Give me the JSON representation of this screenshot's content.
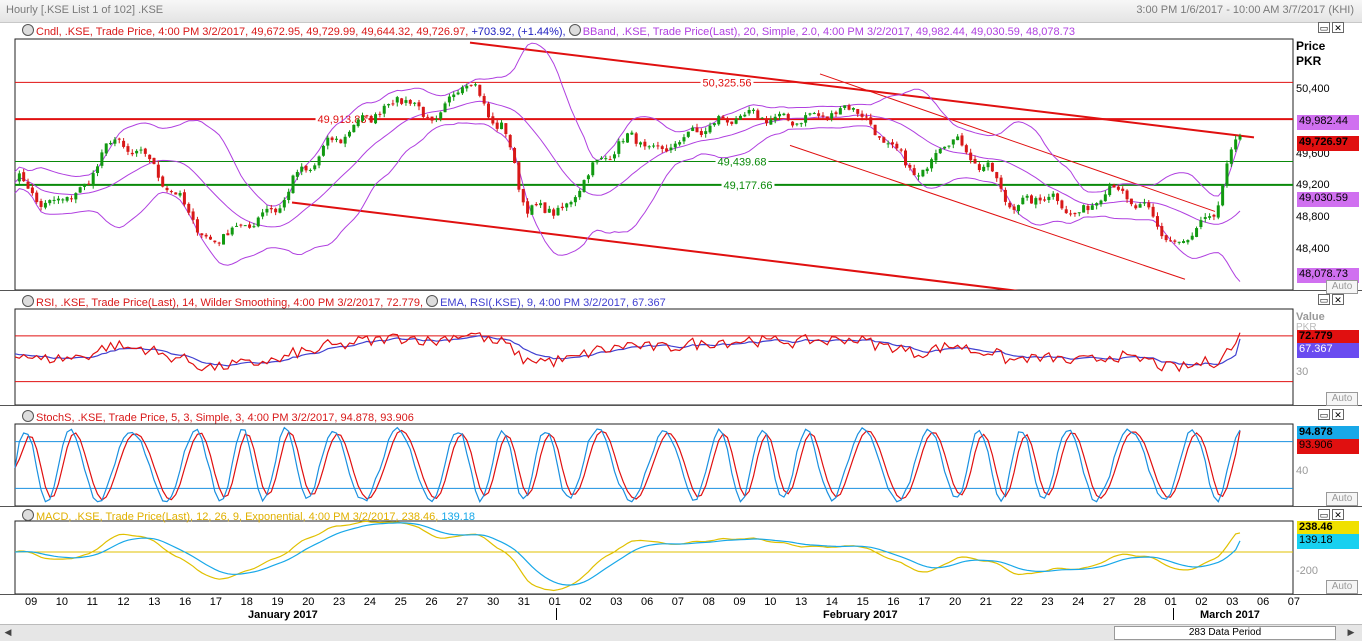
{
  "window": {
    "title": "Hourly [.KSE List 1 of 102] .KSE",
    "range": "3:00 PM 1/6/2017 - 10:00 AM 3/7/2017 (KHI)"
  },
  "colors": {
    "up": "#119911",
    "down": "#d81818",
    "bband": "#b040e0",
    "green_line": "#0a8a0a",
    "red_line": "#e01010",
    "stoch_k": "#1a90e0",
    "stoch_d": "#e01010",
    "macd": "#18a8e8",
    "signal": "#e0c000",
    "rsi": "#e01010",
    "ema": "#4040d0"
  },
  "price_panel": {
    "legend_cndl": "Cndl, .KSE, Trade Price, 4:00 PM 3/2/2017, 49,672.95, 49,729.99, 49,644.32, 49,726.97,",
    "legend_change": "+703.92, (+1.44%),",
    "legend_bband": "BBand, .KSE, Trade Price(Last), 20, Simple, 2.0, 4:00 PM 3/2/2017, 49,982.44, 49,030.59, 48,078.73",
    "axis_title": "Price",
    "axis_unit": "PKR",
    "ticks": [
      "50,400",
      "49,600",
      "49,200",
      "48,800",
      "48,400"
    ],
    "tag_upper": "49,982.44",
    "tag_last": "49,726.97",
    "tag_mid": "49,030.59",
    "tag_lower": "48,078.73",
    "level_1": "50,325.56",
    "level_2": "49,913.83",
    "level_3": "49,439.68",
    "level_4": "49,177.66",
    "auto": "Auto"
  },
  "rsi_panel": {
    "legend_rsi": "RSI, .KSE, Trade Price(Last), 14, Wilder Smoothing, 4:00 PM 3/2/2017, 72.779,",
    "legend_ema": "EMA, RSI(.KSE), 9, 4:00 PM 3/2/2017, 67.367",
    "axis_title": "Value",
    "axis_unit": "PKR",
    "tag_rsi": "72.779",
    "tag_ema": "67.367",
    "tick": "30",
    "auto": "Auto"
  },
  "stoch_panel": {
    "legend": "StochS, .KSE, Trade Price, 5, 3, Simple, 3, 4:00 PM 3/2/2017,",
    "legend_k": "94.878,",
    "legend_d": "93.906",
    "tag_k": "94.878",
    "tag_d": "93.906",
    "tick": "40",
    "auto": "Auto"
  },
  "macd_panel": {
    "legend": "MACD, .KSE, Trade Price(Last), 12, 26, 9, Exponential, 4:00 PM 3/2/2017,",
    "legend_macd": "238.46,",
    "legend_signal": "139.18",
    "tag_macd": "238.46",
    "tag_signal": "139.18",
    "tick": "-200",
    "auto": "Auto"
  },
  "x_axis": {
    "days": [
      "09",
      "10",
      "11",
      "12",
      "13",
      "16",
      "17",
      "18",
      "19",
      "20",
      "23",
      "24",
      "25",
      "26",
      "27",
      "30",
      "31",
      "01",
      "02",
      "03",
      "06",
      "07",
      "08",
      "09",
      "10",
      "13",
      "14",
      "15",
      "16",
      "17",
      "20",
      "21",
      "22",
      "23",
      "24",
      "27",
      "28",
      "01",
      "02",
      "03",
      "06",
      "07"
    ],
    "month_1": "January 2017",
    "month_2": "February 2017",
    "month_3": "March 2017"
  },
  "scrollbar": {
    "label": "283 Data Period"
  },
  "chart_data": {
    "type": "candlestick",
    "title": "Cndl, .KSE",
    "ylabel": "Price PKR",
    "x": [
      "09 Jan",
      "10 Jan",
      "11 Jan",
      "12 Jan",
      "13 Jan",
      "16 Jan",
      "17 Jan",
      "18 Jan",
      "19 Jan",
      "20 Jan",
      "23 Jan",
      "24 Jan",
      "25 Jan",
      "26 Jan",
      "27 Jan",
      "30 Jan",
      "31 Jan",
      "01 Feb",
      "02 Feb",
      "03 Feb",
      "06 Feb",
      "07 Feb",
      "08 Feb",
      "09 Feb",
      "10 Feb",
      "13 Feb",
      "14 Feb",
      "15 Feb",
      "16 Feb",
      "17 Feb",
      "20 Feb",
      "21 Feb",
      "22 Feb",
      "23 Feb",
      "24 Feb",
      "27 Feb",
      "28 Feb",
      "01 Mar",
      "02 Mar"
    ],
    "close": [
      49250,
      48950,
      49100,
      49650,
      49500,
      49050,
      48550,
      48700,
      48900,
      49350,
      49700,
      49950,
      50150,
      49900,
      50350,
      49850,
      48900,
      48900,
      49400,
      49700,
      49550,
      49750,
      49900,
      49950,
      49900,
      49950,
      50050,
      49650,
      49300,
      49700,
      49400,
      48950,
      49050,
      48850,
      49150,
      48900,
      48500,
      48750,
      49727
    ],
    "bband_upper_last": 49982.44,
    "bband_mid_last": 49030.59,
    "bband_lower_last": 48078.73,
    "horizontal_levels": [
      50325.56,
      49913.83,
      49439.68,
      49177.66
    ],
    "ylim": [
      48000,
      50800
    ]
  }
}
